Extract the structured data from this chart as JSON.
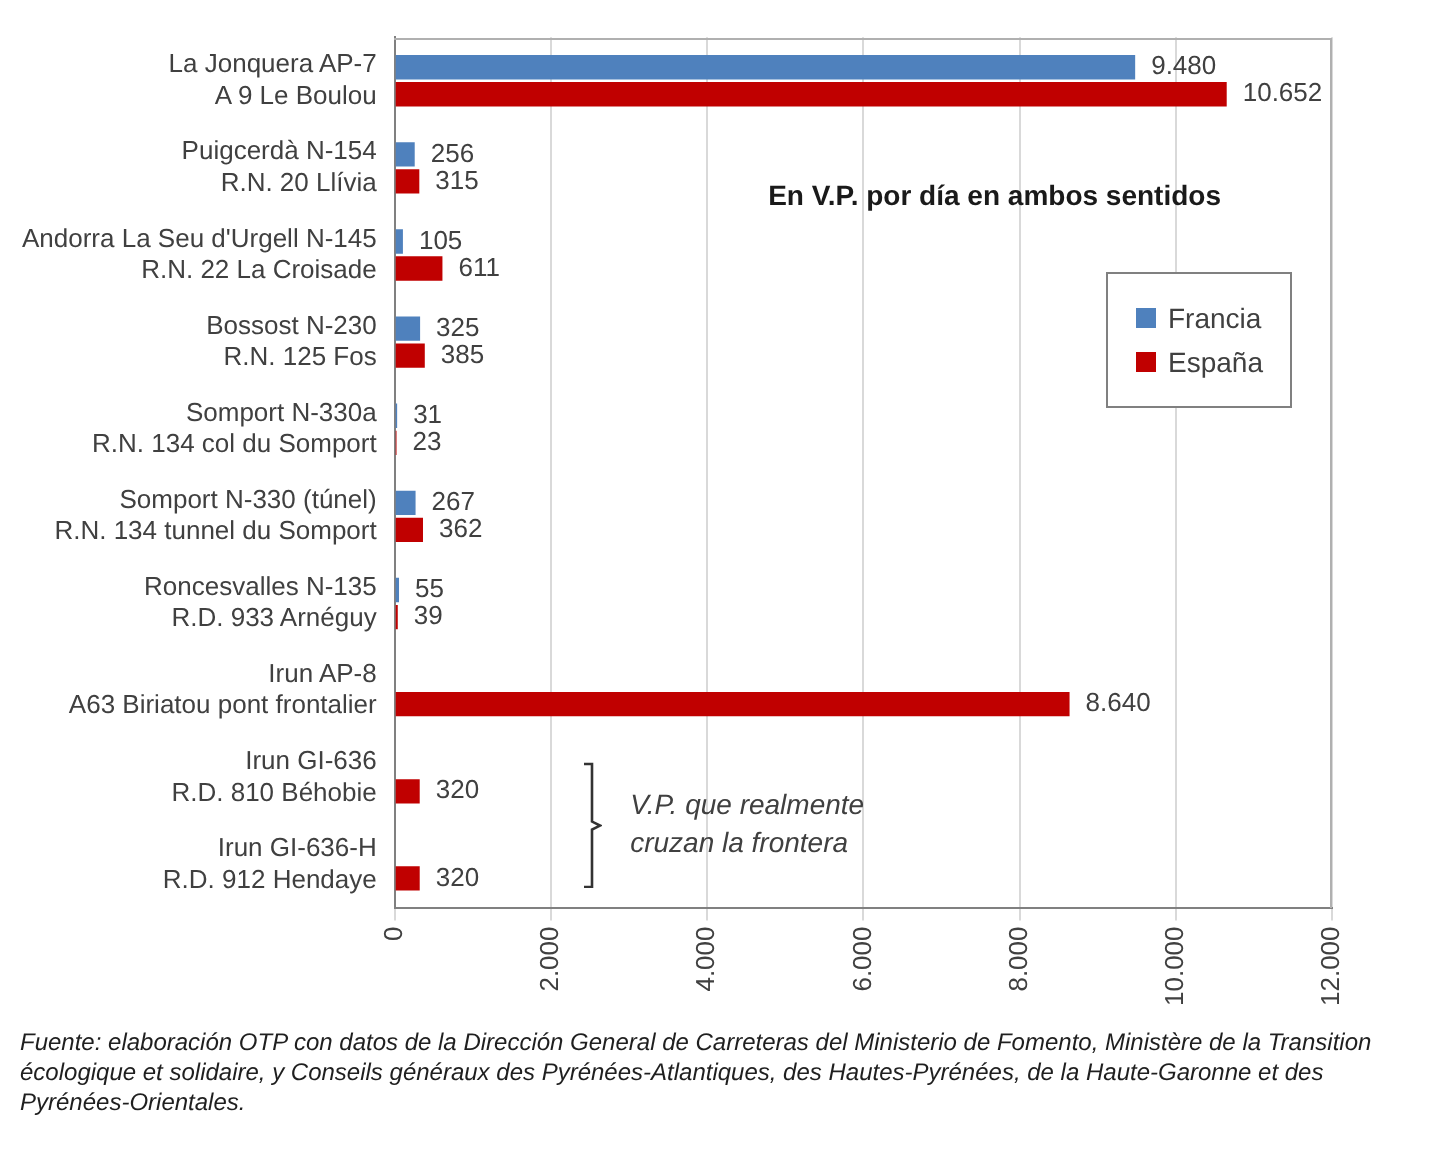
{
  "chart_data": {
    "type": "bar",
    "orientation": "horizontal",
    "title": "En V.P. por día en ambos sentidos",
    "categories": [
      "La Jonquera AP-7\nA 9 Le Boulou",
      "Puigcerdà N-154\nR.N. 20 Llívia",
      "Andorra La Seu d'Urgell N-145\nR.N. 22 La Croisade",
      "Bossost N-230\nR.N. 125 Fos",
      "Somport N-330a\nR.N. 134 col du Somport",
      "Somport N-330 (túnel)\nR.N. 134 tunnel du Somport",
      "Roncesvalles N-135\nR.D. 933 Arnéguy",
      "Irun AP-8\nA63 Biriatou pont frontalier",
      "Irun GI-636\nR.D. 810 Béhobie",
      "Irun GI-636-H\nR.D. 912 Hendaye"
    ],
    "series": [
      {
        "name": "Francia",
        "color": "#4f81bd",
        "values": [
          9480,
          256,
          105,
          325,
          31,
          267,
          55,
          null,
          null,
          null
        ],
        "value_labels": [
          "9.480",
          "256",
          "105",
          "325",
          "31",
          "267",
          "55",
          null,
          null,
          null
        ]
      },
      {
        "name": "España",
        "color": "#c00000",
        "values": [
          10652,
          315,
          611,
          385,
          23,
          362,
          39,
          8640,
          320,
          320
        ],
        "value_labels": [
          "10.652",
          "315",
          "611",
          "385",
          "23",
          "362",
          "39",
          "8.640",
          "320",
          "320"
        ]
      }
    ],
    "xlim": [
      0,
      12000
    ],
    "xticks": [
      0,
      {
        "value": 2000,
        "label": "2.000"
      },
      {
        "value": 4000,
        "label": "4.000"
      },
      {
        "value": 6000,
        "label": "6.000"
      },
      {
        "value": 8000,
        "label": "8.000"
      },
      {
        "value": 10000,
        "label": "10.000"
      },
      {
        "value": 12000,
        "label": "12.000"
      }
    ],
    "grid": "x",
    "legend": "right",
    "annotations": [
      "V.P. que realmente cruzan la frontera",
      "Fuente: elaboración OTP con datos de la Dirección General de Carreteras del Ministerio de Fomento, Ministère de la Transition écologique et solidaire, y Conseils généraux des Pyrénées-Atlantiques, des Hautes-Pyrénées, de la Haute-Garonne et des Pyrénées-Orientales."
    ]
  }
}
